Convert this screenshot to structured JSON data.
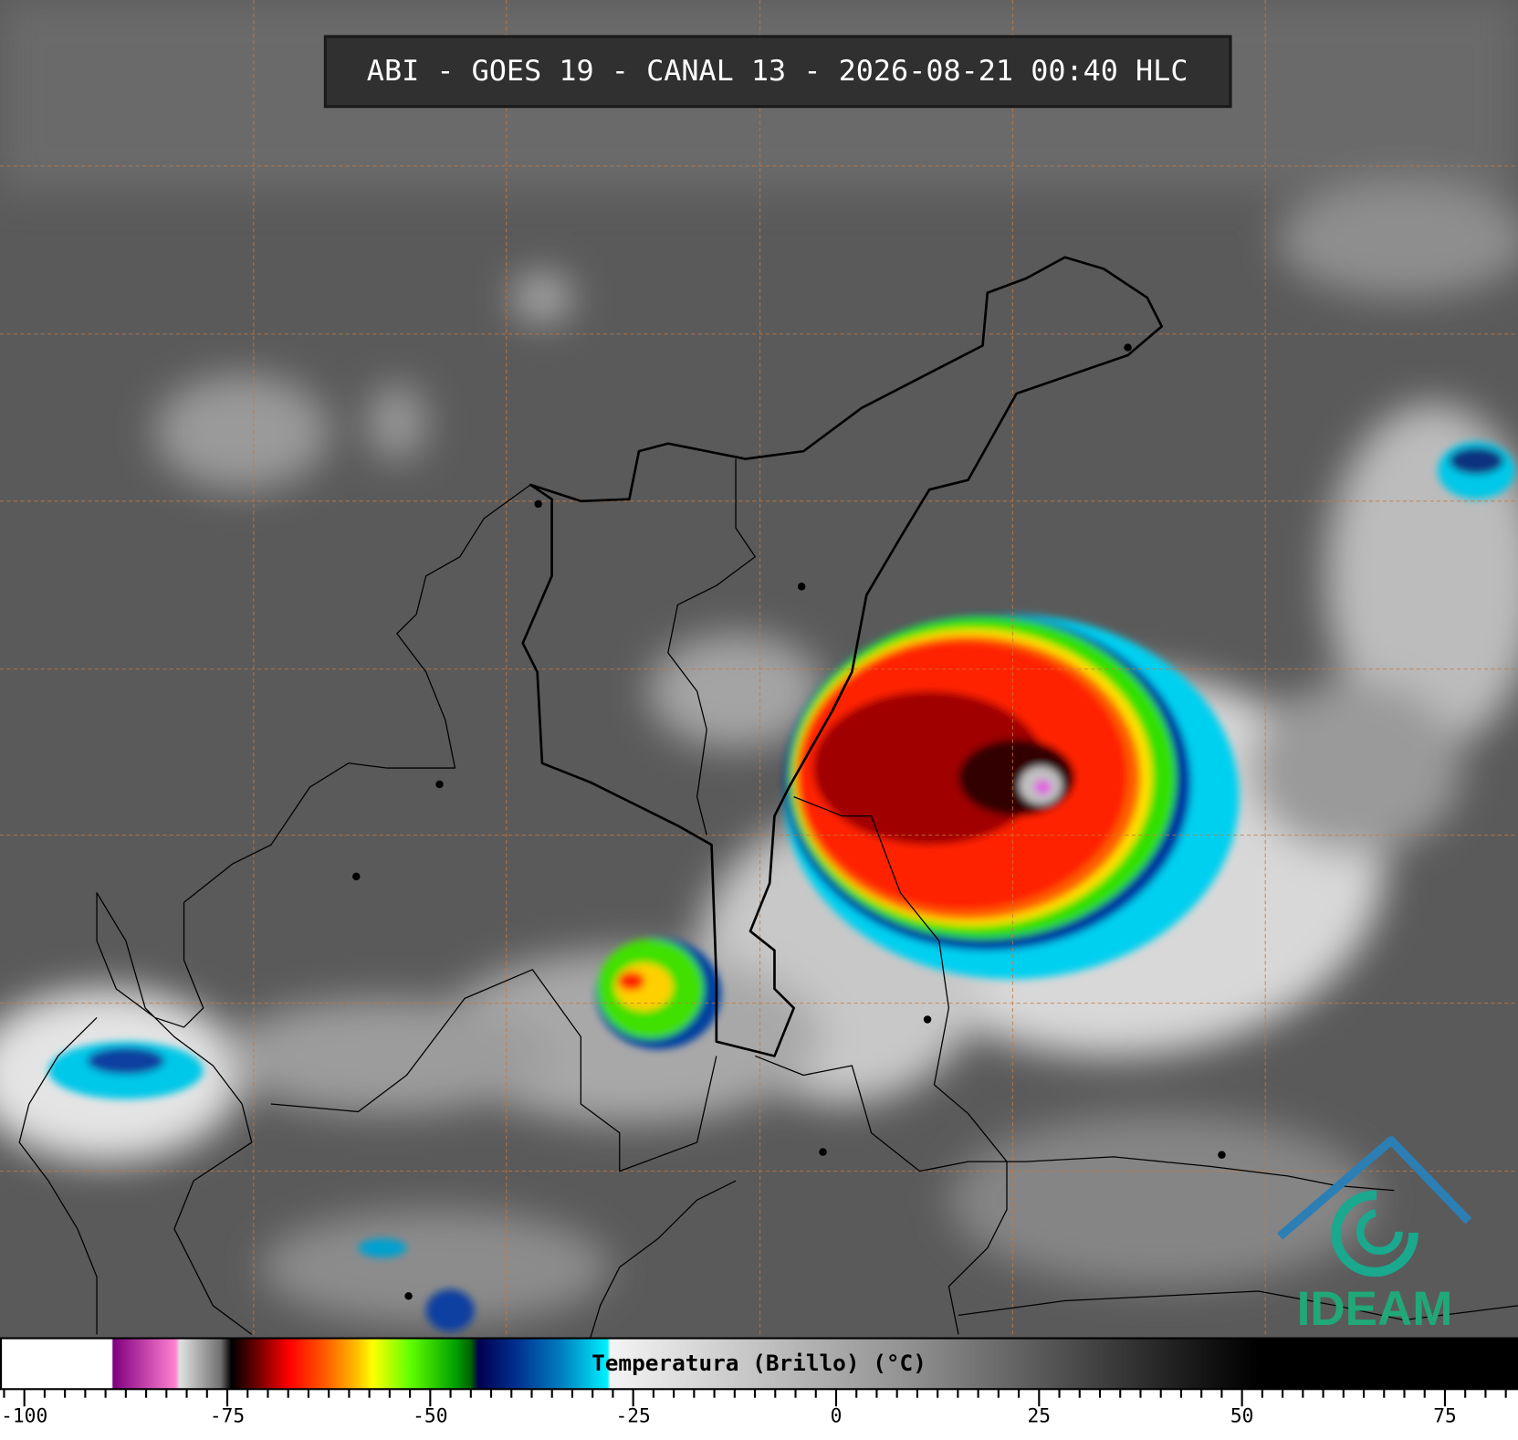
{
  "header": {
    "title": "ABI - GOES 19 - CANAL 13 - 2026-08-21 00:40 HLC"
  },
  "colorbar": {
    "label": "Temperatura (Brillo) (°C)",
    "limits": [
      -103,
      84
    ],
    "ticks": [
      -100,
      -75,
      -50,
      -25,
      0,
      25,
      50,
      75
    ]
  },
  "logo": {
    "text": "IDEAM"
  }
}
